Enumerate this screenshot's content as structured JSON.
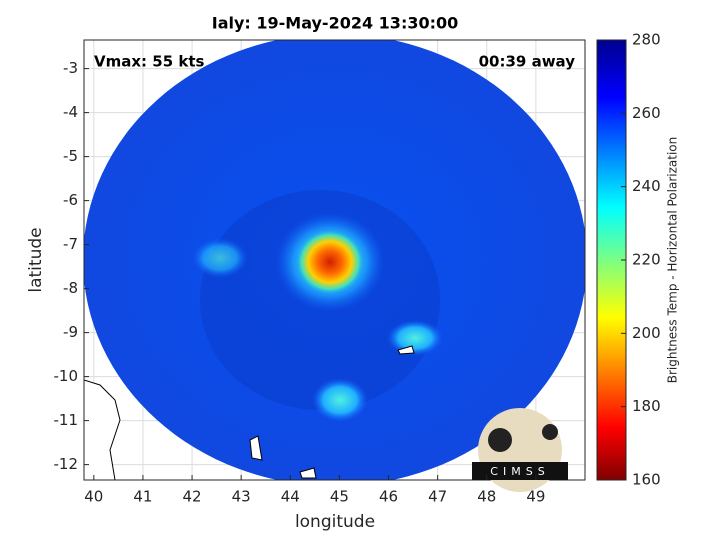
{
  "chart_data": {
    "type": "image",
    "title": "Ialy: 19-May-2024 13:30:00",
    "annotations": [
      "Vmax: 55 kts",
      "00:39 away"
    ],
    "x_label": "longitude",
    "y_label": "latitude",
    "xlim": [
      39.8,
      50
    ],
    "xticks": [
      40,
      41,
      42,
      43,
      44,
      45,
      46,
      47,
      48,
      49
    ],
    "ylim": [
      -12.35,
      -2.35
    ],
    "yticks": [
      -12,
      -11,
      -10,
      -9,
      -8,
      -7,
      -6,
      -5,
      -4,
      -3
    ],
    "grid": true,
    "colorbar": {
      "label": "Brightness Temp - Horizontal Polarization",
      "colormap": "jet",
      "lim": [
        160,
        280
      ],
      "ticks": [
        160,
        180,
        200,
        220,
        240,
        260,
        280
      ]
    },
    "logo": "CIMSS"
  }
}
